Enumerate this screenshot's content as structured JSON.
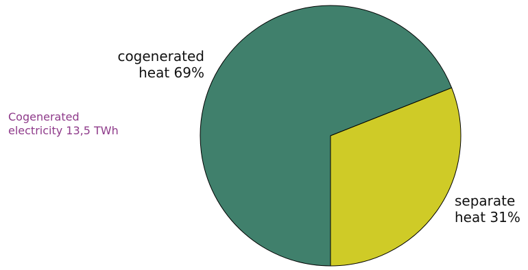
{
  "chart_data": {
    "type": "pie",
    "slices": [
      {
        "line1": "cogenerated",
        "line2": "heat 69%",
        "value": 69,
        "color": "#40806c"
      },
      {
        "line1": "separate",
        "line2": "heat 31%",
        "value": 31,
        "color": "#cfcb27"
      }
    ],
    "annotation": {
      "line1": "Cogenerated",
      "line2": "electricity 13,5 TWh",
      "color": "#8e3a8a"
    },
    "edge_color": "#000000"
  }
}
